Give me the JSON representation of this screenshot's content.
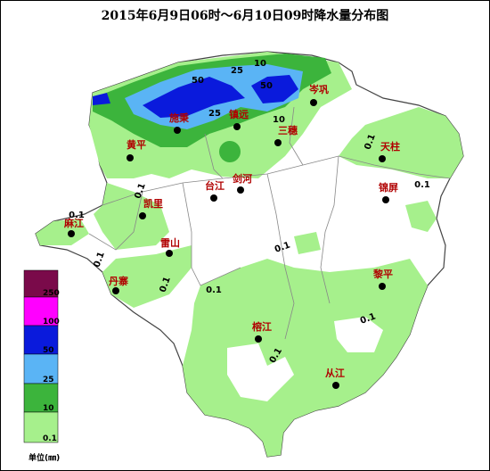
{
  "title": "2015年6月9日06时～6月10日09时降水量分布图",
  "legend": {
    "labels": [
      "250",
      "100",
      "50",
      "25",
      "10",
      "0.1"
    ],
    "unit": "单位(㎜)"
  },
  "cities": [
    "岑巩",
    "施秉",
    "镇远",
    "三穗",
    "黄平",
    "天柱",
    "台江",
    "剑河",
    "锦屏",
    "凯里",
    "麻江",
    "雷山",
    "丹寨",
    "黎平",
    "榕江",
    "从江"
  ],
  "contour_labels": [
    "10",
    "25",
    "50",
    "50",
    "25",
    "10",
    "0.1",
    "0.1",
    "0.1",
    "0.1",
    "0.1",
    "0.1",
    "0.1",
    "0.1",
    "0.1",
    "0.1"
  ]
}
